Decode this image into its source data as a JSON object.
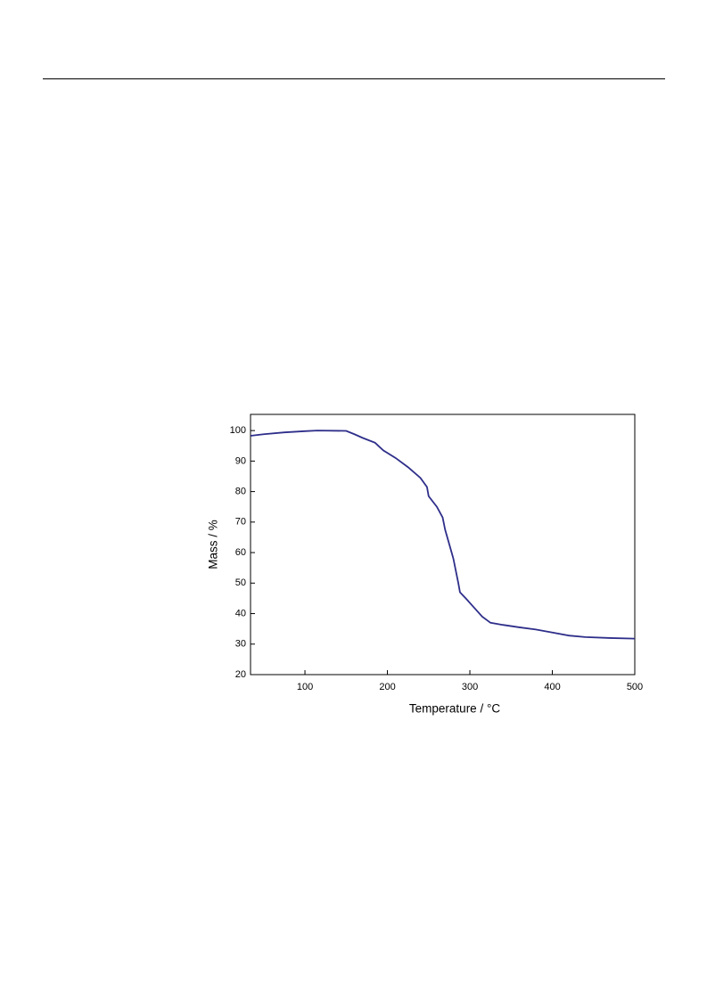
{
  "chart_data": {
    "type": "line",
    "x_label": "Temperature / °C",
    "y_label": "Mass / %",
    "series": [
      {
        "color": "#2e2e8a",
        "x": [
          34,
          50,
          75,
          100,
          115,
          150,
          160,
          170,
          185,
          195,
          210,
          225,
          240,
          248,
          250,
          260,
          267,
          270,
          280,
          286,
          288,
          295,
          305,
          315,
          325,
          340,
          360,
          380,
          400,
          420,
          440,
          470,
          500
        ],
        "values": [
          98.3,
          98.8,
          99.4,
          99.8,
          100,
          99.9,
          98.8,
          97.6,
          96.0,
          93.5,
          91,
          88,
          84.5,
          81.5,
          78.5,
          75,
          71.5,
          67.5,
          58,
          50,
          47,
          45,
          42,
          39,
          37,
          36.3,
          35.5,
          34.8,
          33.8,
          32.8,
          32.3,
          32.0,
          31.8
        ]
      }
    ],
    "xlim": [
      34,
      500
    ],
    "ylim": [
      20,
      105.3
    ],
    "xticks": [
      100,
      200,
      300,
      400,
      500
    ],
    "yticks": [
      20,
      30,
      40,
      50,
      60,
      70,
      80,
      90,
      100
    ]
  }
}
